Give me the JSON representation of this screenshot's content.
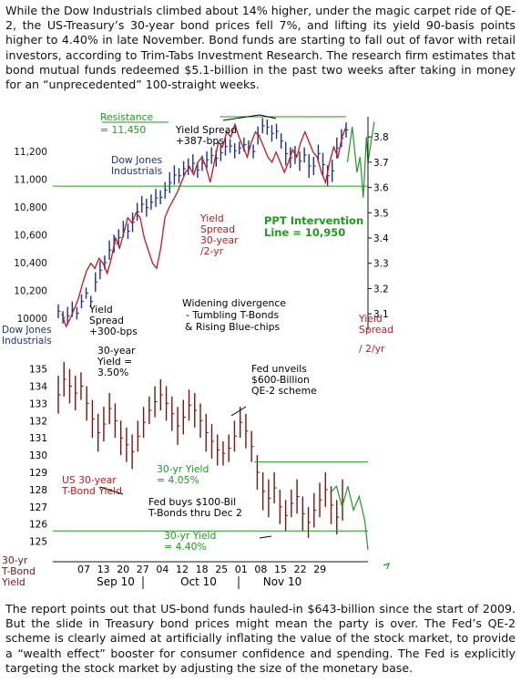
{
  "article": {
    "intro": "While the Dow Industrials climbed about 14% higher, under the magic carpet ride of QE-2, the US-Treasury’s 30-year bond prices fell 7%, and lifting its yield 90-basis points higher to 4.40% in late November. Bond funds are starting to fall out of favor with retail investors, according to Trim-Tabs Investment Research. The research firm estimates that bond mutual funds redeemed $5.1-billion in the past two weeks after taking in money for an “unprecedented” 100-straight weeks.",
    "outro": "The report points out that US-bond funds hauled-in $643-billion since the start of 2009. But the slide in Treasury bond prices might mean the party is over. The Fed’s QE-2 scheme is clearly aimed at artificially inflating the value of the stock market, to provide a “wealth effect” booster for consumer confidence and spending. The Fed is explicitly targeting the stock market by adjusting the size of the monetary base."
  },
  "chart_data": {
    "type": "line",
    "colors": {
      "dow": "#1c2f8c",
      "spread": "#c8161d",
      "bond": "#7a1412",
      "guides": "#1f9a1f",
      "annot": "#000000"
    },
    "x": {
      "day_labels": [
        "07",
        "13",
        "20",
        "27",
        "04",
        "12",
        "18",
        "25",
        "01",
        "08",
        "15",
        "22",
        "29"
      ],
      "month_labels": [
        "Sep 10",
        "Oct 10",
        "Nov 10"
      ]
    },
    "dow_panel": {
      "ylabel": "Dow Jones Industrials",
      "ylim": [
        9940,
        11450
      ],
      "yticks": [
        "11,200",
        "11,000",
        "10,800",
        "10,600",
        "10,400",
        "10,200",
        "10000"
      ],
      "ytick_values": [
        11200,
        11000,
        10800,
        10600,
        10400,
        10200,
        10000
      ],
      "dow_bars": [
        [
          10100,
          10000
        ],
        [
          10050,
          9960
        ],
        [
          10080,
          9950
        ],
        [
          10120,
          10010
        ],
        [
          10080,
          9990
        ],
        [
          10170,
          10070
        ],
        [
          10220,
          10140
        ],
        [
          10160,
          10080
        ],
        [
          10330,
          10190
        ],
        [
          10410,
          10280
        ],
        [
          10450,
          10350
        ],
        [
          10560,
          10420
        ],
        [
          10600,
          10470
        ],
        [
          10640,
          10520
        ],
        [
          10700,
          10580
        ],
        [
          10680,
          10570
        ],
        [
          10760,
          10620
        ],
        [
          10830,
          10700
        ],
        [
          10880,
          10760
        ],
        [
          10860,
          10730
        ],
        [
          10890,
          10780
        ],
        [
          10930,
          10800
        ],
        [
          10920,
          10820
        ],
        [
          10980,
          10860
        ],
        [
          11050,
          10900
        ],
        [
          11100,
          10960
        ],
        [
          11080,
          10970
        ],
        [
          11130,
          11020
        ],
        [
          11150,
          11030
        ],
        [
          11180,
          11050
        ],
        [
          11120,
          11010
        ],
        [
          11170,
          11060
        ],
        [
          11200,
          11080
        ],
        [
          11230,
          11110
        ],
        [
          11210,
          11090
        ],
        [
          11250,
          11130
        ],
        [
          11300,
          11170
        ],
        [
          11290,
          11190
        ],
        [
          11260,
          11150
        ],
        [
          11270,
          11180
        ],
        [
          11300,
          11200
        ],
        [
          11280,
          11190
        ],
        [
          11250,
          11150
        ],
        [
          11380,
          11250
        ],
        [
          11440,
          11330
        ],
        [
          11430,
          11320
        ],
        [
          11390,
          11270
        ],
        [
          11400,
          11290
        ],
        [
          11330,
          11220
        ],
        [
          11270,
          11100
        ],
        [
          11230,
          11080
        ],
        [
          11240,
          11110
        ],
        [
          11200,
          11060
        ],
        [
          11230,
          11120
        ],
        [
          11180,
          11010
        ],
        [
          11160,
          11030
        ],
        [
          11250,
          11120
        ],
        [
          11190,
          11020
        ],
        [
          11100,
          10950
        ],
        [
          11140,
          10980
        ],
        [
          11300,
          11150
        ],
        [
          11360,
          11230
        ],
        [
          11410,
          11300
        ]
      ],
      "spread_overlay": {
        "label": "Yield Spread 30-year /2-yr",
        "ylim": [
          3.05,
          3.88
        ],
        "yticks": [
          "3.8",
          "3.7",
          "3.6",
          "3.5",
          "3.4",
          "3.3",
          "3.2",
          "3.1"
        ],
        "ytick_values": [
          3.8,
          3.7,
          3.6,
          3.5,
          3.4,
          3.3,
          3.2,
          3.1
        ],
        "values": [
          3.1,
          3.05,
          3.08,
          3.12,
          3.16,
          3.22,
          3.27,
          3.3,
          3.28,
          3.32,
          3.3,
          3.26,
          3.32,
          3.4,
          3.36,
          3.42,
          3.48,
          3.46,
          3.5,
          3.48,
          3.4,
          3.35,
          3.3,
          3.28,
          3.36,
          3.48,
          3.52,
          3.55,
          3.58,
          3.62,
          3.66,
          3.68,
          3.65,
          3.7,
          3.72,
          3.68,
          3.62,
          3.7,
          3.78,
          3.76,
          3.82,
          3.8,
          3.85,
          3.8,
          3.76,
          3.72,
          3.78,
          3.82,
          3.8,
          3.76,
          3.72,
          3.7,
          3.74,
          3.7,
          3.66,
          3.7,
          3.75,
          3.72,
          3.78,
          3.82,
          3.78,
          3.74,
          3.72,
          3.66,
          3.62,
          3.7,
          3.76,
          3.72,
          3.8,
          3.84
        ]
      },
      "guides": [
        {
          "y": 11450,
          "x_from": 0.53,
          "x_to": 0.93
        },
        {
          "y": 10950,
          "x_from": 0.0,
          "x_to": 1.0
        }
      ]
    },
    "bond_panel": {
      "ylabel": "30-yr T-Bond Yield",
      "ylim": [
        124.4,
        136.3
      ],
      "yticks": [
        "135",
        "134",
        "133",
        "132",
        "131",
        "130",
        "129",
        "128",
        "127",
        "126",
        "125"
      ],
      "ytick_values": [
        135,
        134,
        133,
        132,
        131,
        130,
        129,
        128,
        127,
        126,
        125
      ],
      "bond_bars": [
        [
          134.6,
          132.4
        ],
        [
          135.4,
          133.4
        ],
        [
          135.0,
          133.0
        ],
        [
          134.6,
          132.6
        ],
        [
          134.8,
          133.2
        ],
        [
          134.0,
          132.0
        ],
        [
          133.2,
          131.0
        ],
        [
          132.4,
          130.2
        ],
        [
          132.8,
          130.8
        ],
        [
          133.6,
          131.8
        ],
        [
          133.0,
          131.0
        ],
        [
          132.0,
          130.0
        ],
        [
          131.6,
          129.6
        ],
        [
          131.2,
          129.2
        ],
        [
          132.0,
          130.2
        ],
        [
          132.8,
          131.0
        ],
        [
          133.4,
          131.8
        ],
        [
          134.0,
          132.2
        ],
        [
          134.4,
          132.6
        ],
        [
          134.0,
          132.0
        ],
        [
          133.4,
          131.4
        ],
        [
          132.8,
          130.6
        ],
        [
          133.2,
          131.2
        ],
        [
          133.8,
          132.0
        ],
        [
          133.6,
          131.6
        ],
        [
          133.0,
          131.0
        ],
        [
          132.4,
          130.2
        ],
        [
          131.8,
          129.8
        ],
        [
          131.2,
          129.4
        ],
        [
          130.8,
          129.4
        ],
        [
          131.2,
          129.6
        ],
        [
          132.0,
          130.2
        ],
        [
          132.8,
          131.0
        ],
        [
          132.4,
          130.4
        ],
        [
          131.4,
          129.6
        ],
        [
          130.0,
          128.0
        ],
        [
          129.0,
          126.8
        ],
        [
          128.6,
          126.4
        ],
        [
          129.0,
          127.2
        ],
        [
          128.0,
          126.0
        ],
        [
          127.4,
          125.6
        ],
        [
          128.0,
          126.4
        ],
        [
          128.6,
          126.6
        ],
        [
          127.6,
          125.6
        ],
        [
          127.0,
          125.2
        ],
        [
          127.8,
          125.8
        ],
        [
          128.4,
          126.4
        ],
        [
          129.0,
          127.0
        ],
        [
          128.2,
          126.0
        ],
        [
          127.4,
          125.4
        ],
        [
          128.6,
          126.2
        ]
      ],
      "spread_overlay_tail": [
        [
          128.2,
          0.9
        ],
        [
          127.0,
          0.918
        ],
        [
          128.2,
          0.936
        ],
        [
          126.8,
          0.954
        ],
        [
          127.6,
          0.972
        ],
        [
          126.2,
          0.99
        ],
        [
          124.5,
          1.0
        ]
      ],
      "guides": [
        {
          "y": 129.6,
          "x_from": 0.64,
          "x_to": 1.0
        },
        {
          "y": 125.6,
          "x_from": 0.0,
          "x_to": 1.0
        }
      ]
    },
    "annotations": [
      {
        "text": "Resistance",
        "role": "guide"
      },
      {
        "text": "= 11,450",
        "role": "guide"
      },
      {
        "text": "Yield Spread",
        "role": "black"
      },
      {
        "text": "+387-bps",
        "role": "black"
      },
      {
        "text": "Dow Jones",
        "role": "dow"
      },
      {
        "text": "Industrials",
        "role": "dow"
      },
      {
        "text": "Yield",
        "role": "spread"
      },
      {
        "text": "Spread",
        "role": "spread"
      },
      {
        "text": "30-year",
        "role": "spread"
      },
      {
        "text": "/2-yr",
        "role": "spread"
      },
      {
        "text": "PPT Intervention",
        "role": "guide-bold"
      },
      {
        "text": "Line = 10,950",
        "role": "guide-bold"
      },
      {
        "text": "Widening divergence",
        "role": "black"
      },
      {
        "text": "- Tumbling T-Bonds",
        "role": "black"
      },
      {
        "text": "& Rising Blue-chips",
        "role": "black"
      },
      {
        "text": "Yield",
        "role": "spread"
      },
      {
        "text": "Spread",
        "role": "spread"
      },
      {
        "text": "/ 2/yr",
        "role": "spread"
      },
      {
        "text": "Yield",
        "role": "black"
      },
      {
        "text": "Spread",
        "role": "black"
      },
      {
        "text": "+300-bps",
        "role": "black"
      },
      {
        "text": "30-year",
        "role": "black"
      },
      {
        "text": "Yield =",
        "role": "black"
      },
      {
        "text": "3.50%",
        "role": "black"
      },
      {
        "text": "Fed unveils",
        "role": "black"
      },
      {
        "text": "$600-Billion",
        "role": "black"
      },
      {
        "text": "QE-2 scheme",
        "role": "black"
      },
      {
        "text": "30-yr Yield",
        "role": "guide"
      },
      {
        "text": "= 4.05%",
        "role": "guide"
      },
      {
        "text": "US 30-year",
        "role": "spread"
      },
      {
        "text": "T-Bond Yield",
        "role": "bond"
      },
      {
        "text": "Fed buys $100-Bil",
        "role": "black"
      },
      {
        "text": "T-Bonds thru Dec 2",
        "role": "black"
      },
      {
        "text": "30-yr Yield",
        "role": "guide"
      },
      {
        "text": "= 4.40%",
        "role": "guide"
      },
      {
        "text": "30-yr",
        "role": "bond-label"
      },
      {
        "text": "T-Bond",
        "role": "bond-label"
      },
      {
        "text": "Yield",
        "role": "bond-label"
      }
    ]
  }
}
